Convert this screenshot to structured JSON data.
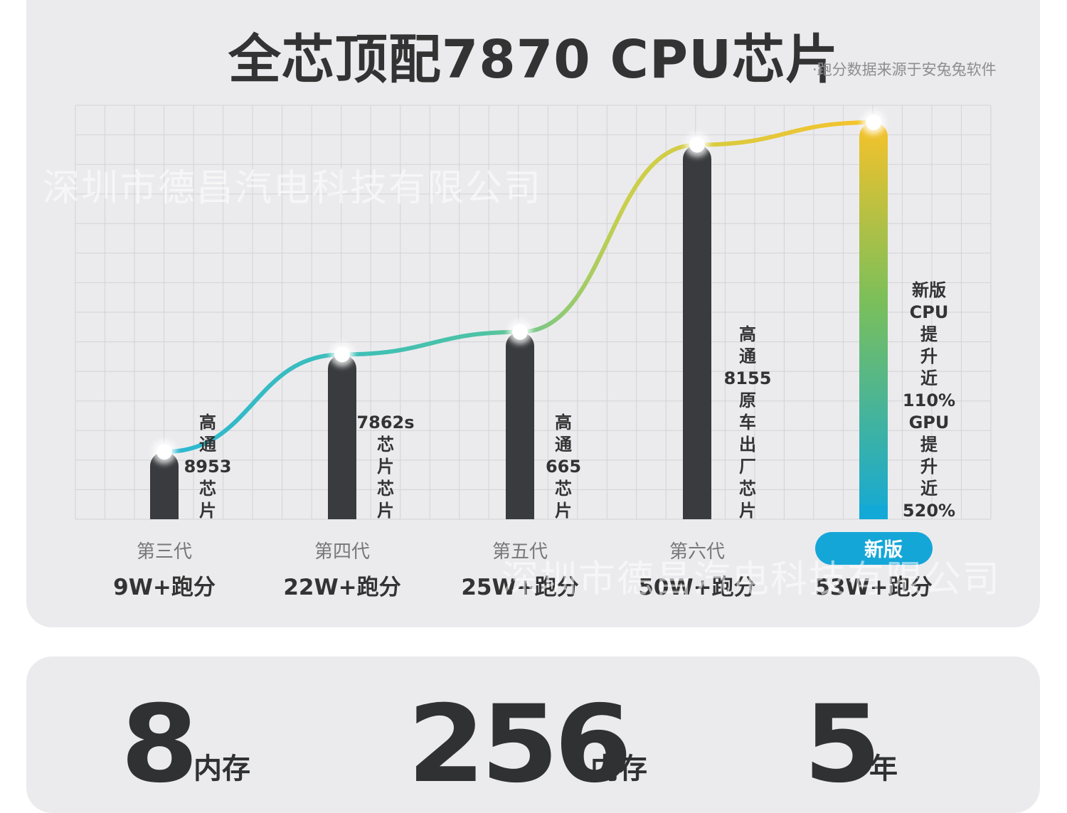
{
  "header": {
    "title": "全芯顶配7870 CPU芯片",
    "source_note": "·跑分数据来源于安兔兔软件"
  },
  "watermark": "深圳市德昌汽电科技有限公司",
  "colors": {
    "bar_dark": "#393b3e",
    "grad_top": "#f7c22a",
    "grad_bottom": "#13a9d7",
    "badge": "#15a6d8",
    "card": "#ebebee"
  },
  "chart_data": {
    "type": "bar",
    "title": "全芯顶配7870 CPU芯片",
    "categories": [
      "第三代",
      "第四代",
      "第五代",
      "第六代",
      "新版"
    ],
    "score_labels": [
      "9W+跑分",
      "22W+跑分",
      "25W+跑分",
      "50W+跑分",
      "53W+跑分"
    ],
    "values": [
      9,
      22,
      25,
      50,
      53
    ],
    "bar_labels": [
      [
        "高",
        "通",
        "8953",
        "芯",
        "片"
      ],
      [
        "7862s",
        "芯",
        "片",
        "芯",
        "片"
      ],
      [
        "高",
        "通",
        "665",
        "芯",
        "片"
      ],
      [
        "高",
        "通",
        "8155",
        "原",
        "车",
        "出",
        "厂",
        "芯",
        "片"
      ],
      [
        "新版",
        "CPU",
        "提",
        "升",
        "近",
        "110%",
        "GPU",
        "提",
        "升",
        "近",
        "520%"
      ]
    ],
    "highlight_category": "新版",
    "trend_line": true,
    "grid": true
  },
  "specs": [
    {
      "value": "8",
      "unit": "内存"
    },
    {
      "value": "256",
      "unit": "内存"
    },
    {
      "value": "5",
      "unit": "年"
    }
  ]
}
